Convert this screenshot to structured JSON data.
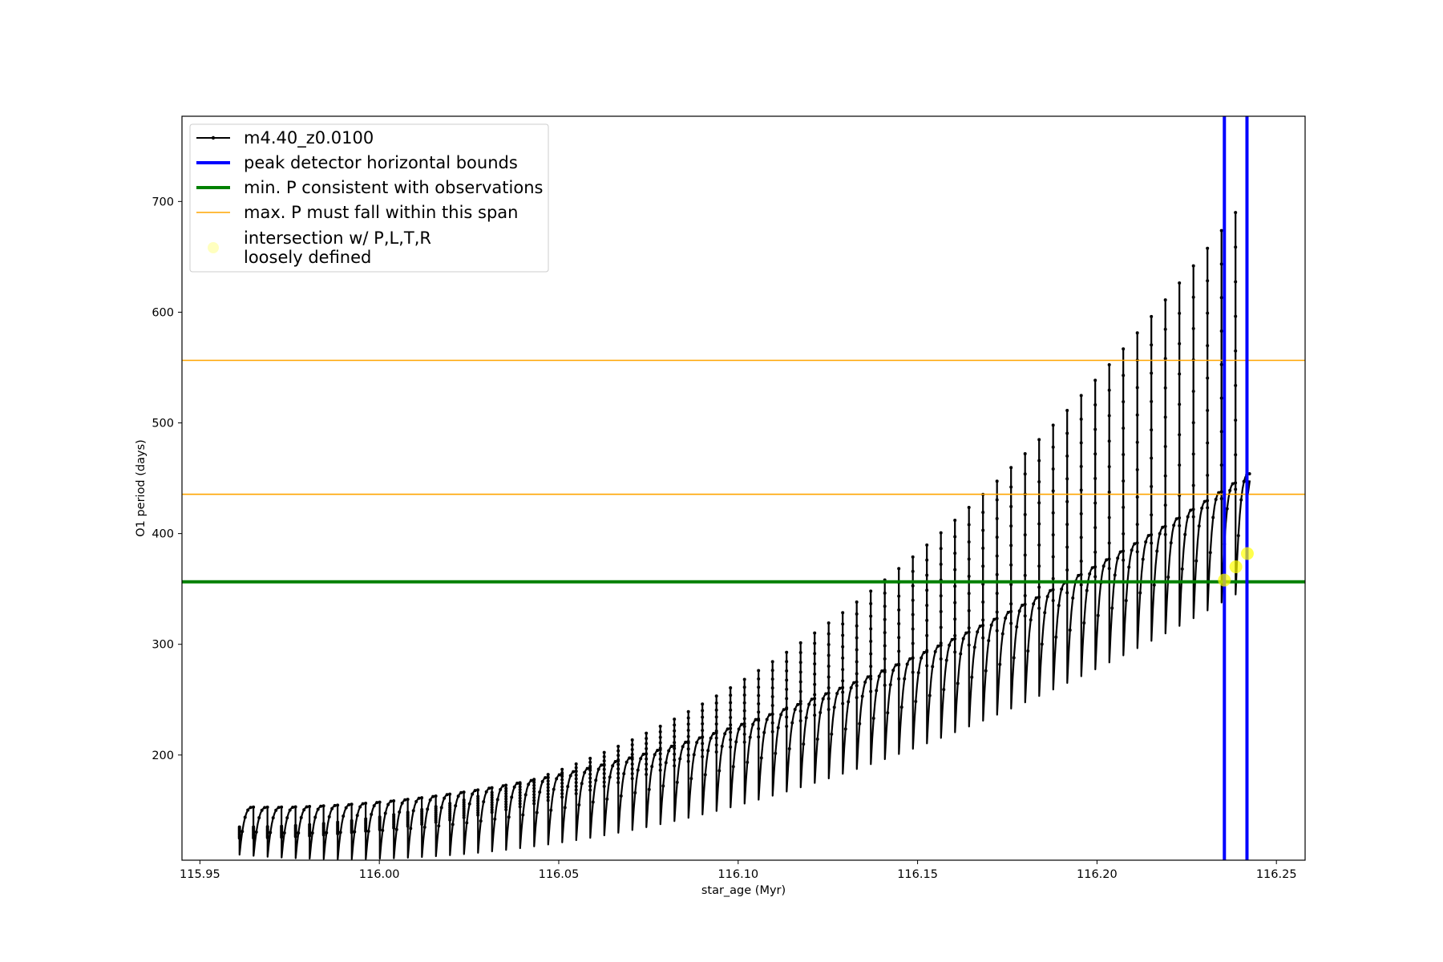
{
  "chart_data": {
    "type": "line",
    "xlabel": "star_age (Myr)",
    "ylabel": "O1 period (days)",
    "xlim": [
      115.945,
      116.258
    ],
    "ylim": [
      105,
      777
    ],
    "xticks": [
      115.95,
      116.0,
      116.05,
      116.1,
      116.15,
      116.2,
      116.25
    ],
    "xtick_labels": [
      "115.95",
      "116.00",
      "116.05",
      "116.10",
      "116.15",
      "116.20",
      "116.25"
    ],
    "yticks": [
      200,
      300,
      400,
      500,
      600,
      700
    ],
    "ytick_labels": [
      "200",
      "300",
      "400",
      "500",
      "600",
      "700"
    ],
    "grid": false,
    "legend_placement": "top-left",
    "colors": {
      "series": "#000000",
      "bounds": "#0000ff",
      "min_p": "#008000",
      "max_p_span": "#ffa500",
      "intersection": "#ffff00"
    },
    "series": [
      {
        "name": "m4.40_z0.0100",
        "model": "thermal pulse sawtooth",
        "x_start": 115.961,
        "x_end": 116.2425,
        "num_pulses": 72,
        "base_start": 125,
        "base_end": 440,
        "spike_start": 135,
        "spike_end": 690,
        "drop_start": 15,
        "drop_end": 95
      }
    ],
    "vertical_lines": [
      {
        "label": "peak detector horizontal bounds",
        "x": [
          116.2355,
          116.2418
        ]
      }
    ],
    "horizontal_lines": [
      {
        "label": "min. P consistent with observations",
        "y": [
          356.5
        ]
      },
      {
        "label": "max. P must fall within this span",
        "y": [
          435.5,
          556.5
        ]
      }
    ],
    "intersection_points": {
      "label": "intersection w/ P,L,T,R\nloosely defined",
      "points": [
        {
          "x": 116.2355,
          "y": 358
        },
        {
          "x": 116.2387,
          "y": 370
        },
        {
          "x": 116.2419,
          "y": 382
        }
      ]
    },
    "legend": [
      {
        "label": "m4.40_z0.0100",
        "kind": "line-marker",
        "color": "#000000"
      },
      {
        "label": "peak detector horizontal bounds",
        "kind": "line",
        "color": "#0000ff"
      },
      {
        "label": "min. P consistent with observations",
        "kind": "line",
        "color": "#008000"
      },
      {
        "label": "max. P must fall within this span",
        "kind": "line",
        "color": "#ffa500"
      },
      {
        "label": "intersection w/ P,L,T,R",
        "label2": "loosely defined",
        "kind": "dot",
        "color": "#ffff00"
      }
    ]
  }
}
